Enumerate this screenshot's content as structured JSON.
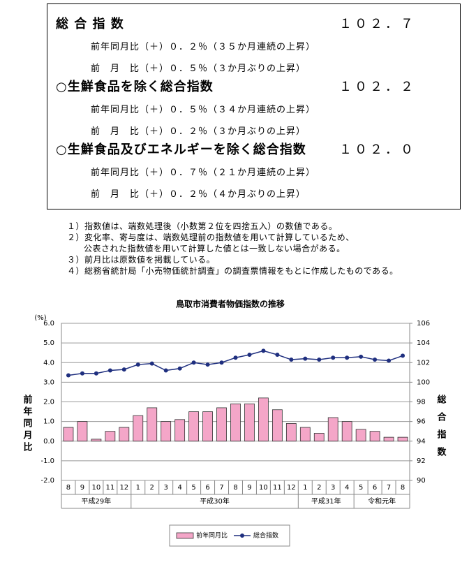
{
  "summary": [
    {
      "title": "総 合 指 数",
      "value": "１０２．７",
      "lines": [
        "前年同月比（＋）０．２％（３５か月連続の上昇）",
        "前　月　比（＋）０．５％（３か月ぶりの上昇）"
      ]
    },
    {
      "title": "○生鮮食品を除く総合指数",
      "value": "１０２．２",
      "lines": [
        "前年同月比（＋）０．５％（３４か月連続の上昇）",
        "前　月　比（＋）０．２％（３か月ぶりの上昇）"
      ]
    },
    {
      "title": "○生鮮食品及びエネルギーを除く総合指数",
      "value": "１０２．０",
      "lines": [
        "前年同月比（＋）０．７％（２１か月連続の上昇）",
        "前　月　比（＋）０．２％（４か月ぶりの上昇）"
      ]
    }
  ],
  "notes": [
    "１）指数値は、端数処理後（小数第２位を四捨五入）の数値である。",
    "２）変化率、寄与度は、端数処理前の指数値を用いて計算しているため、",
    "公表された指数値を用いて計算した値とは一致しない場合がある。",
    "３）前月比は原数値を掲載している。",
    "４）総務省統計局「小売物価統計調査」の調査票情報をもとに作成したものである。"
  ],
  "chart_data": {
    "type": "bar-line",
    "title": "鳥取市消費者物価指数の推移",
    "y_unit": "(%)",
    "y_title": "前年同月比",
    "y2_title": "総合指数",
    "groups": [
      {
        "label": "平成29年",
        "categories": [
          "8",
          "9",
          "10",
          "11",
          "12"
        ]
      },
      {
        "label": "平成30年",
        "categories": [
          "1",
          "2",
          "3",
          "4",
          "5",
          "6",
          "7",
          "8",
          "9",
          "10",
          "11",
          "12"
        ]
      },
      {
        "label": "平成31年",
        "categories": [
          "1",
          "2",
          "3",
          "4"
        ]
      },
      {
        "label": "令和元年",
        "categories": [
          "5",
          "6",
          "7",
          "8"
        ]
      }
    ],
    "series": [
      {
        "name": "前年同月比",
        "type": "bar",
        "color": "#f4a6c8",
        "values": [
          0.7,
          1.0,
          0.1,
          0.5,
          0.7,
          1.3,
          1.7,
          1.0,
          1.1,
          1.5,
          1.5,
          1.7,
          1.9,
          1.9,
          2.2,
          1.6,
          0.9,
          0.7,
          0.4,
          1.2,
          1.0,
          0.6,
          0.5,
          0.2,
          0.2
        ]
      },
      {
        "name": "総合指数",
        "type": "line",
        "axis": "y2",
        "color": "#1f2f7f",
        "values": [
          100.7,
          100.9,
          100.9,
          101.2,
          101.3,
          101.8,
          101.9,
          101.2,
          101.4,
          102.0,
          101.8,
          102.0,
          102.5,
          102.8,
          103.2,
          102.8,
          102.3,
          102.4,
          102.3,
          102.5,
          102.5,
          102.6,
          102.3,
          102.2,
          102.7
        ]
      }
    ],
    "ylim": [
      -2,
      6
    ],
    "yticks": [
      {
        "value": -2,
        "label": "-2.0"
      },
      {
        "value": -1,
        "label": "-1.0"
      },
      {
        "value": 0,
        "label": "0.0"
      },
      {
        "value": 1,
        "label": "1.0"
      },
      {
        "value": 2,
        "label": "2.0"
      },
      {
        "value": 3,
        "label": "3.0"
      },
      {
        "value": 4,
        "label": "4.0"
      },
      {
        "value": 5,
        "label": "5.0"
      },
      {
        "value": 6,
        "label": "6.0"
      }
    ],
    "y2lim": [
      90,
      106
    ],
    "y2ticks": [
      90,
      92,
      94,
      96,
      98,
      100,
      102,
      104,
      106
    ]
  }
}
